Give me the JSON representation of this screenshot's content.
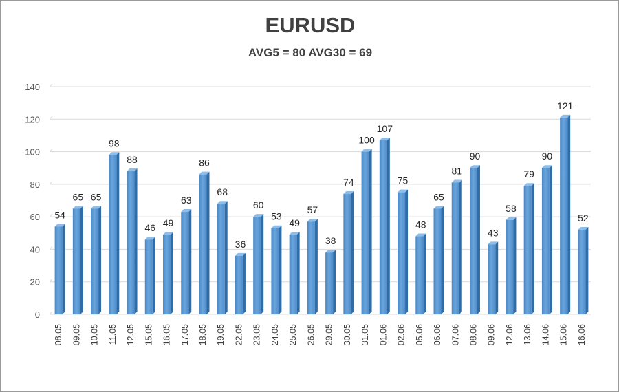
{
  "chart_data": {
    "type": "bar",
    "title": "EURUSD",
    "subtitle": "AVG5 = 80 AVG30 = 69",
    "xlabel": "",
    "ylabel": "",
    "ylim": [
      0,
      140
    ],
    "yticks": [
      0,
      20,
      40,
      60,
      80,
      100,
      120,
      140
    ],
    "grid": true,
    "legend": "none",
    "bar_color": "#5b9bd5",
    "categories": [
      "08.05",
      "09.05",
      "10.05",
      "11.05",
      "12.05",
      "15.05",
      "16.05",
      "17.05",
      "18.05",
      "19.05",
      "22.05",
      "23.05",
      "24.05",
      "25.05",
      "26.05",
      "29.05",
      "30.05",
      "31.05",
      "01.06",
      "02.06",
      "05.06",
      "06.06",
      "07.06",
      "08.06",
      "09.06",
      "12.06",
      "13.06",
      "14.06",
      "15.06",
      "16.06"
    ],
    "values": [
      54,
      65,
      65,
      98,
      88,
      46,
      49,
      63,
      86,
      68,
      36,
      60,
      53,
      49,
      57,
      38,
      74,
      100,
      107,
      75,
      48,
      65,
      81,
      90,
      43,
      58,
      79,
      90,
      121,
      52
    ]
  }
}
